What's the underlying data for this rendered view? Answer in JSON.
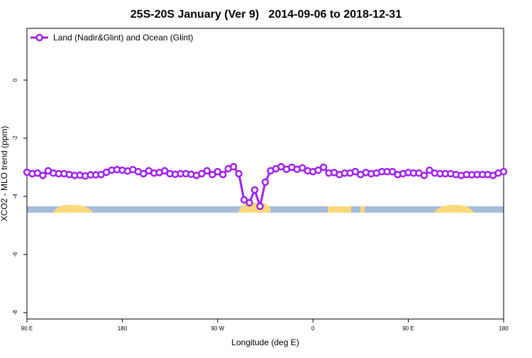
{
  "chart_data": {
    "type": "line",
    "title": "25S-20S January (Ver 9)   2014-09-06 to 2018-12-31",
    "x_label": "Longitude (deg E)",
    "y_label": "XCO2 - MLO trend (ppm)",
    "x": [
      90,
      95,
      100,
      105,
      110,
      115,
      120,
      125,
      130,
      135,
      140,
      145,
      150,
      155,
      160,
      165,
      170,
      175,
      180,
      185,
      190,
      195,
      200,
      205,
      210,
      215,
      220,
      225,
      230,
      235,
      240,
      245,
      250,
      255,
      260,
      265,
      270,
      275,
      280,
      285,
      290,
      295,
      300,
      305,
      310,
      315,
      320,
      325,
      330,
      335,
      340,
      345,
      350,
      355,
      360,
      365,
      370,
      375,
      380,
      385,
      390,
      395,
      400,
      405,
      410,
      415,
      420,
      425,
      430,
      435,
      440,
      445,
      450,
      455,
      460,
      465,
      470,
      475,
      480,
      485,
      490,
      495,
      500,
      505,
      510,
      515,
      520,
      525,
      530,
      535,
      540
    ],
    "series": [
      {
        "name": "Land (Nadir&Glint) and Ocean (Glint)",
        "color": "#a020f0",
        "values": [
          -3.17,
          -3.22,
          -3.2,
          -3.28,
          -3.12,
          -3.2,
          -3.22,
          -3.22,
          -3.25,
          -3.28,
          -3.27,
          -3.3,
          -3.26,
          -3.26,
          -3.25,
          -3.17,
          -3.1,
          -3.08,
          -3.1,
          -3.13,
          -3.08,
          -3.15,
          -3.22,
          -3.12,
          -3.2,
          -3.18,
          -3.12,
          -3.22,
          -3.24,
          -3.22,
          -3.22,
          -3.24,
          -3.28,
          -3.22,
          -3.12,
          -3.25,
          -3.15,
          -3.25,
          -3.05,
          -2.98,
          -3.22,
          -4.12,
          -4.22,
          -3.78,
          -4.34,
          -3.51,
          -3.12,
          -3.05,
          -2.98,
          -3.07,
          -3.0,
          -3.07,
          -3.02,
          -3.12,
          -3.15,
          -3.1,
          -3.0,
          -3.2,
          -3.18,
          -3.25,
          -3.2,
          -3.2,
          -3.15,
          -3.25,
          -3.18,
          -3.22,
          -3.2,
          -3.15,
          -3.15,
          -3.15,
          -3.25,
          -3.22,
          -3.18,
          -3.2,
          -3.2,
          -3.28,
          -3.1,
          -3.2,
          -3.22,
          -3.22,
          -3.22,
          -3.25,
          -3.28,
          -3.25,
          -3.26,
          -3.25,
          -3.25,
          -3.25,
          -3.28,
          -3.2,
          -3.15
        ]
      }
    ],
    "xlim": [
      90,
      540
    ],
    "xticks": [
      {
        "value": 90,
        "label": "90 E"
      },
      180,
      {
        "value": 270,
        "label": "90 W"
      },
      {
        "value": 360,
        "label": "0"
      },
      {
        "value": 450,
        "label": "90 E"
      },
      {
        "value": 540,
        "label": "180"
      }
    ],
    "ylim": [
      -8.22,
      1.78
    ],
    "yticks": [
      0,
      -2,
      -4,
      -6,
      -8
    ],
    "legend": "top-left"
  }
}
